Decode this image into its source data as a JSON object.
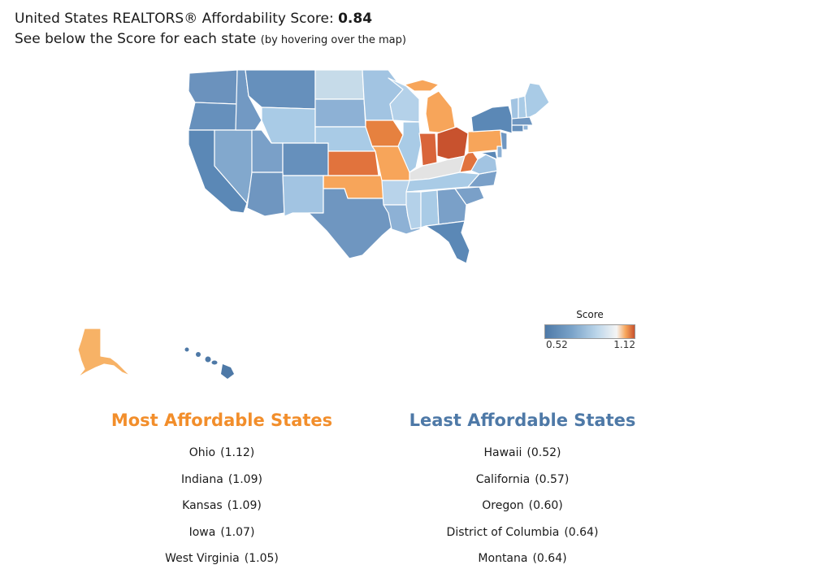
{
  "header": {
    "title_prefix": "United States  REALTORS® Affordability Score: ",
    "score": "0.84",
    "subtitle_main": "See below the Score for each state ",
    "subtitle_small": "(by hovering over the map)"
  },
  "legend": {
    "title": "Score",
    "min_label": "0.52",
    "max_label": "1.12",
    "min": 0.52,
    "max": 1.12
  },
  "most_affordable": {
    "heading": "Most Affordable States",
    "items": [
      {
        "state": "Ohio",
        "score": "(1.12)"
      },
      {
        "state": "Indiana",
        "score": "(1.09)"
      },
      {
        "state": "Kansas",
        "score": "(1.09)"
      },
      {
        "state": "Iowa",
        "score": "(1.07)"
      },
      {
        "state": "West Virginia",
        "score": "(1.05)"
      }
    ]
  },
  "least_affordable": {
    "heading": "Least Affordable States",
    "items": [
      {
        "state": "Hawaii",
        "score": "(0.52)"
      },
      {
        "state": "California",
        "score": "(0.57)"
      },
      {
        "state": "Oregon",
        "score": "(0.60)"
      },
      {
        "state": "District of Columbia",
        "score": "(0.64)"
      },
      {
        "state": "Montana",
        "score": "(0.64)"
      }
    ]
  },
  "colors": {
    "most_heading": "#f28e2b",
    "least_heading": "#4e79a7",
    "scale": [
      "#4e79a7",
      "#7aa3c9",
      "#bcd6ea",
      "#f5f5f5",
      "#f7a55a",
      "#c8522e"
    ]
  }
}
